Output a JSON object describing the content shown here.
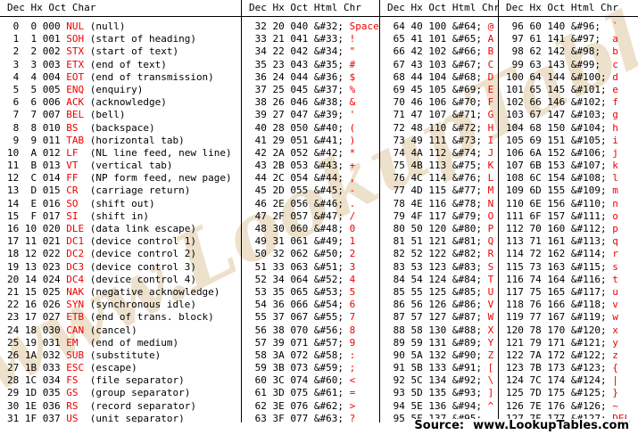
{
  "colors": {
    "background": "#ffffff",
    "text": "#000000",
    "accent_red": "#ee0000",
    "rule": "#000000",
    "watermark_tan": "#dec9a3"
  },
  "watermark_text": "www.LookupTables.com",
  "footer": {
    "source_label": "Source:",
    "source_url": "www.LookupTables.com"
  },
  "groups": [
    {
      "type": "control",
      "headers": [
        "Dec",
        "Hx",
        "Oct",
        "Char"
      ],
      "rows": [
        [
          "0",
          "0",
          "000",
          "NUL",
          "(null)"
        ],
        [
          "1",
          "1",
          "001",
          "SOH",
          "(start of heading)"
        ],
        [
          "2",
          "2",
          "002",
          "STX",
          "(start of text)"
        ],
        [
          "3",
          "3",
          "003",
          "ETX",
          "(end of text)"
        ],
        [
          "4",
          "4",
          "004",
          "EOT",
          "(end of transmission)"
        ],
        [
          "5",
          "5",
          "005",
          "ENQ",
          "(enquiry)"
        ],
        [
          "6",
          "6",
          "006",
          "ACK",
          "(acknowledge)"
        ],
        [
          "7",
          "7",
          "007",
          "BEL",
          "(bell)"
        ],
        [
          "8",
          "8",
          "010",
          "BS",
          "(backspace)"
        ],
        [
          "9",
          "9",
          "011",
          "TAB",
          "(horizontal tab)"
        ],
        [
          "10",
          "A",
          "012",
          "LF",
          "(NL line feed, new line)"
        ],
        [
          "11",
          "B",
          "013",
          "VT",
          "(vertical tab)"
        ],
        [
          "12",
          "C",
          "014",
          "FF",
          "(NP form feed, new page)"
        ],
        [
          "13",
          "D",
          "015",
          "CR",
          "(carriage return)"
        ],
        [
          "14",
          "E",
          "016",
          "SO",
          "(shift out)"
        ],
        [
          "15",
          "F",
          "017",
          "SI",
          "(shift in)"
        ],
        [
          "16",
          "10",
          "020",
          "DLE",
          "(data link escape)"
        ],
        [
          "17",
          "11",
          "021",
          "DC1",
          "(device control 1)"
        ],
        [
          "18",
          "12",
          "022",
          "DC2",
          "(device control 2)"
        ],
        [
          "19",
          "13",
          "023",
          "DC3",
          "(device control 3)"
        ],
        [
          "20",
          "14",
          "024",
          "DC4",
          "(device control 4)"
        ],
        [
          "21",
          "15",
          "025",
          "NAK",
          "(negative acknowledge)"
        ],
        [
          "22",
          "16",
          "026",
          "SYN",
          "(synchronous idle)"
        ],
        [
          "23",
          "17",
          "027",
          "ETB",
          "(end of trans. block)"
        ],
        [
          "24",
          "18",
          "030",
          "CAN",
          "(cancel)"
        ],
        [
          "25",
          "19",
          "031",
          "EM",
          "(end of medium)"
        ],
        [
          "26",
          "1A",
          "032",
          "SUB",
          "(substitute)"
        ],
        [
          "27",
          "1B",
          "033",
          "ESC",
          "(escape)"
        ],
        [
          "28",
          "1C",
          "034",
          "FS",
          "(file separator)"
        ],
        [
          "29",
          "1D",
          "035",
          "GS",
          "(group separator)"
        ],
        [
          "30",
          "1E",
          "036",
          "RS",
          "(record separator)"
        ],
        [
          "31",
          "1F",
          "037",
          "US",
          "(unit separator)"
        ]
      ]
    },
    {
      "type": "printable",
      "headers": [
        "Dec",
        "Hx",
        "Oct",
        "Html",
        "Chr"
      ],
      "rows": [
        [
          "32",
          "20",
          "040",
          "&#32;",
          "Space"
        ],
        [
          "33",
          "21",
          "041",
          "&#33;",
          "!"
        ],
        [
          "34",
          "22",
          "042",
          "&#34;",
          "\""
        ],
        [
          "35",
          "23",
          "043",
          "&#35;",
          "#"
        ],
        [
          "36",
          "24",
          "044",
          "&#36;",
          "$"
        ],
        [
          "37",
          "25",
          "045",
          "&#37;",
          "%"
        ],
        [
          "38",
          "26",
          "046",
          "&#38;",
          "&"
        ],
        [
          "39",
          "27",
          "047",
          "&#39;",
          "'"
        ],
        [
          "40",
          "28",
          "050",
          "&#40;",
          "("
        ],
        [
          "41",
          "29",
          "051",
          "&#41;",
          ")"
        ],
        [
          "42",
          "2A",
          "052",
          "&#42;",
          "*"
        ],
        [
          "43",
          "2B",
          "053",
          "&#43;",
          "+"
        ],
        [
          "44",
          "2C",
          "054",
          "&#44;",
          ","
        ],
        [
          "45",
          "2D",
          "055",
          "&#45;",
          "-"
        ],
        [
          "46",
          "2E",
          "056",
          "&#46;",
          "."
        ],
        [
          "47",
          "2F",
          "057",
          "&#47;",
          "/"
        ],
        [
          "48",
          "30",
          "060",
          "&#48;",
          "0"
        ],
        [
          "49",
          "31",
          "061",
          "&#49;",
          "1"
        ],
        [
          "50",
          "32",
          "062",
          "&#50;",
          "2"
        ],
        [
          "51",
          "33",
          "063",
          "&#51;",
          "3"
        ],
        [
          "52",
          "34",
          "064",
          "&#52;",
          "4"
        ],
        [
          "53",
          "35",
          "065",
          "&#53;",
          "5"
        ],
        [
          "54",
          "36",
          "066",
          "&#54;",
          "6"
        ],
        [
          "55",
          "37",
          "067",
          "&#55;",
          "7"
        ],
        [
          "56",
          "38",
          "070",
          "&#56;",
          "8"
        ],
        [
          "57",
          "39",
          "071",
          "&#57;",
          "9"
        ],
        [
          "58",
          "3A",
          "072",
          "&#58;",
          ":"
        ],
        [
          "59",
          "3B",
          "073",
          "&#59;",
          ";"
        ],
        [
          "60",
          "3C",
          "074",
          "&#60;",
          "<"
        ],
        [
          "61",
          "3D",
          "075",
          "&#61;",
          "="
        ],
        [
          "62",
          "3E",
          "076",
          "&#62;",
          ">"
        ],
        [
          "63",
          "3F",
          "077",
          "&#63;",
          "?"
        ]
      ]
    },
    {
      "type": "printable",
      "headers": [
        "Dec",
        "Hx",
        "Oct",
        "Html",
        "Chr"
      ],
      "rows": [
        [
          "64",
          "40",
          "100",
          "&#64;",
          "@"
        ],
        [
          "65",
          "41",
          "101",
          "&#65;",
          "A"
        ],
        [
          "66",
          "42",
          "102",
          "&#66;",
          "B"
        ],
        [
          "67",
          "43",
          "103",
          "&#67;",
          "C"
        ],
        [
          "68",
          "44",
          "104",
          "&#68;",
          "D"
        ],
        [
          "69",
          "45",
          "105",
          "&#69;",
          "E"
        ],
        [
          "70",
          "46",
          "106",
          "&#70;",
          "F"
        ],
        [
          "71",
          "47",
          "107",
          "&#71;",
          "G"
        ],
        [
          "72",
          "48",
          "110",
          "&#72;",
          "H"
        ],
        [
          "73",
          "49",
          "111",
          "&#73;",
          "I"
        ],
        [
          "74",
          "4A",
          "112",
          "&#74;",
          "J"
        ],
        [
          "75",
          "4B",
          "113",
          "&#75;",
          "K"
        ],
        [
          "76",
          "4C",
          "114",
          "&#76;",
          "L"
        ],
        [
          "77",
          "4D",
          "115",
          "&#77;",
          "M"
        ],
        [
          "78",
          "4E",
          "116",
          "&#78;",
          "N"
        ],
        [
          "79",
          "4F",
          "117",
          "&#79;",
          "O"
        ],
        [
          "80",
          "50",
          "120",
          "&#80;",
          "P"
        ],
        [
          "81",
          "51",
          "121",
          "&#81;",
          "Q"
        ],
        [
          "82",
          "52",
          "122",
          "&#82;",
          "R"
        ],
        [
          "83",
          "53",
          "123",
          "&#83;",
          "S"
        ],
        [
          "84",
          "54",
          "124",
          "&#84;",
          "T"
        ],
        [
          "85",
          "55",
          "125",
          "&#85;",
          "U"
        ],
        [
          "86",
          "56",
          "126",
          "&#86;",
          "V"
        ],
        [
          "87",
          "57",
          "127",
          "&#87;",
          "W"
        ],
        [
          "88",
          "58",
          "130",
          "&#88;",
          "X"
        ],
        [
          "89",
          "59",
          "131",
          "&#89;",
          "Y"
        ],
        [
          "90",
          "5A",
          "132",
          "&#90;",
          "Z"
        ],
        [
          "91",
          "5B",
          "133",
          "&#91;",
          "["
        ],
        [
          "92",
          "5C",
          "134",
          "&#92;",
          "\\"
        ],
        [
          "93",
          "5D",
          "135",
          "&#93;",
          "]"
        ],
        [
          "94",
          "5E",
          "136",
          "&#94;",
          "^"
        ],
        [
          "95",
          "5F",
          "137",
          "&#95;",
          "_"
        ]
      ]
    },
    {
      "type": "printable",
      "headers": [
        "Dec",
        "Hx",
        "Oct",
        "Html",
        "Chr"
      ],
      "rows": [
        [
          "96",
          "60",
          "140",
          "&#96;",
          "`"
        ],
        [
          "97",
          "61",
          "141",
          "&#97;",
          "a"
        ],
        [
          "98",
          "62",
          "142",
          "&#98;",
          "b"
        ],
        [
          "99",
          "63",
          "143",
          "&#99;",
          "c"
        ],
        [
          "100",
          "64",
          "144",
          "&#100;",
          "d"
        ],
        [
          "101",
          "65",
          "145",
          "&#101;",
          "e"
        ],
        [
          "102",
          "66",
          "146",
          "&#102;",
          "f"
        ],
        [
          "103",
          "67",
          "147",
          "&#103;",
          "g"
        ],
        [
          "104",
          "68",
          "150",
          "&#104;",
          "h"
        ],
        [
          "105",
          "69",
          "151",
          "&#105;",
          "i"
        ],
        [
          "106",
          "6A",
          "152",
          "&#106;",
          "j"
        ],
        [
          "107",
          "6B",
          "153",
          "&#107;",
          "k"
        ],
        [
          "108",
          "6C",
          "154",
          "&#108;",
          "l"
        ],
        [
          "109",
          "6D",
          "155",
          "&#109;",
          "m"
        ],
        [
          "110",
          "6E",
          "156",
          "&#110;",
          "n"
        ],
        [
          "111",
          "6F",
          "157",
          "&#111;",
          "o"
        ],
        [
          "112",
          "70",
          "160",
          "&#112;",
          "p"
        ],
        [
          "113",
          "71",
          "161",
          "&#113;",
          "q"
        ],
        [
          "114",
          "72",
          "162",
          "&#114;",
          "r"
        ],
        [
          "115",
          "73",
          "163",
          "&#115;",
          "s"
        ],
        [
          "116",
          "74",
          "164",
          "&#116;",
          "t"
        ],
        [
          "117",
          "75",
          "165",
          "&#117;",
          "u"
        ],
        [
          "118",
          "76",
          "166",
          "&#118;",
          "v"
        ],
        [
          "119",
          "77",
          "167",
          "&#119;",
          "w"
        ],
        [
          "120",
          "78",
          "170",
          "&#120;",
          "x"
        ],
        [
          "121",
          "79",
          "171",
          "&#121;",
          "y"
        ],
        [
          "122",
          "7A",
          "172",
          "&#122;",
          "z"
        ],
        [
          "123",
          "7B",
          "173",
          "&#123;",
          "{"
        ],
        [
          "124",
          "7C",
          "174",
          "&#124;",
          "|"
        ],
        [
          "125",
          "7D",
          "175",
          "&#125;",
          "}"
        ],
        [
          "126",
          "7E",
          "176",
          "&#126;",
          "~"
        ],
        [
          "127",
          "7F",
          "177",
          "&#127;",
          "DEL"
        ]
      ]
    }
  ]
}
